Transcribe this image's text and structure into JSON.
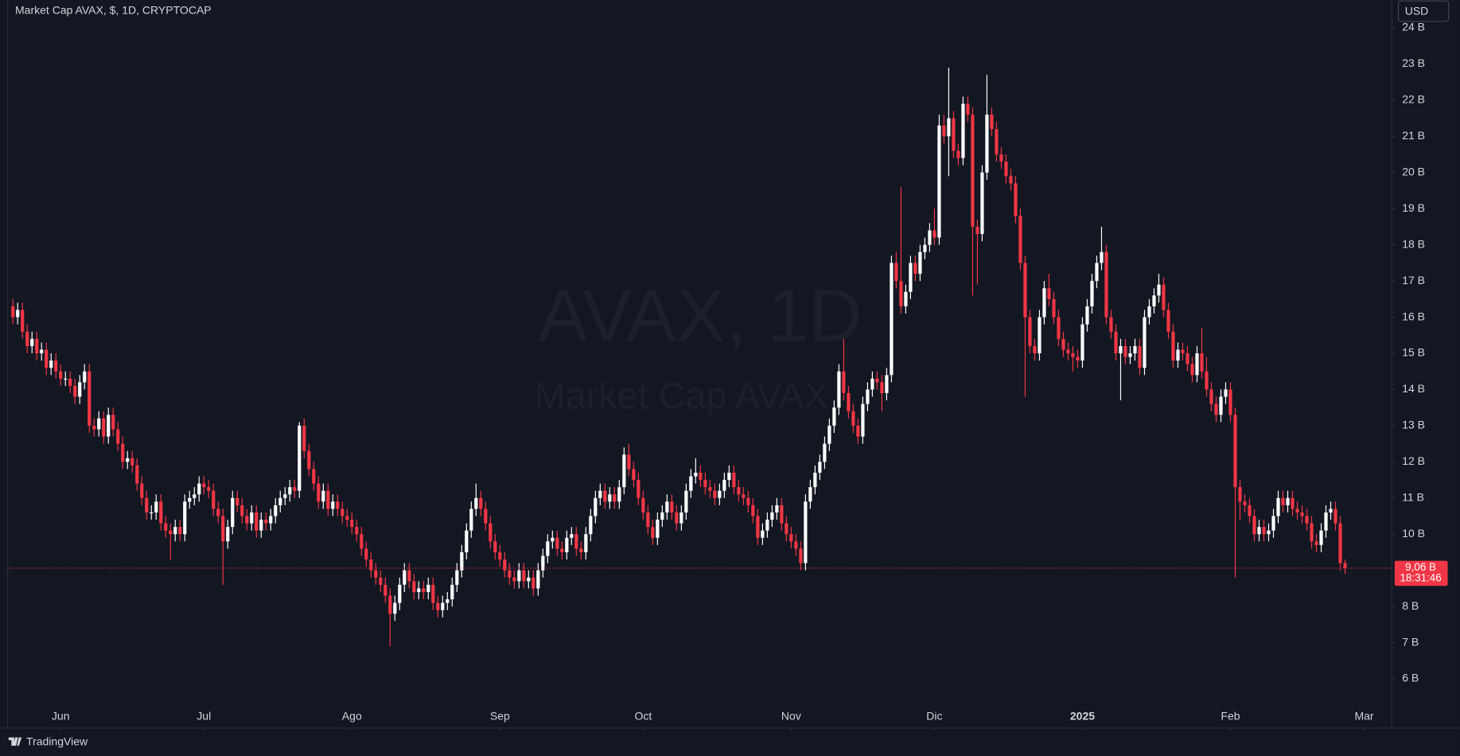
{
  "ui": {
    "currency": "USD",
    "watermark_main": "AVAX, 1D",
    "watermark_sub": "Market Cap AVAX",
    "countdown": "18:31:46",
    "brand": "TradingView"
  },
  "chart_data": {
    "type": "candlestick",
    "title": "Market Cap AVAX, $, 1D, CRYPTOCAP",
    "up_color": "#ffffff",
    "down_color": "#f23645",
    "grid": false,
    "last_label": "9,06 B",
    "xlim": [
      -1.1,
      288.8
    ],
    "xticks": [
      {
        "value": 10,
        "label": "Jun"
      },
      {
        "value": 40,
        "label": "Jul"
      },
      {
        "value": 71,
        "label": "Ago"
      },
      {
        "value": 102,
        "label": "Sep"
      },
      {
        "value": 132,
        "label": "Oct"
      },
      {
        "value": 163,
        "label": "Nov"
      },
      {
        "value": 193,
        "label": "Dic"
      },
      {
        "value": 224,
        "label": "2025"
      },
      {
        "value": 255,
        "label": "Feb"
      },
      {
        "value": 283,
        "label": "Mar"
      }
    ],
    "ylim": [
      4.69,
      24.77
    ],
    "yticks": [
      {
        "value": 6,
        "label": "6 B"
      },
      {
        "value": 7,
        "label": "7 B"
      },
      {
        "value": 8,
        "label": "8 B"
      },
      {
        "value": 10,
        "label": "10 B"
      },
      {
        "value": 11,
        "label": "11 B"
      },
      {
        "value": 12,
        "label": "12 B"
      },
      {
        "value": 13,
        "label": "13 B"
      },
      {
        "value": 14,
        "label": "14 B"
      },
      {
        "value": 15,
        "label": "15 B"
      },
      {
        "value": 16,
        "label": "16 B"
      },
      {
        "value": 17,
        "label": "17 B"
      },
      {
        "value": 18,
        "label": "18 B"
      },
      {
        "value": 19,
        "label": "19 B"
      },
      {
        "value": 20,
        "label": "20 B"
      },
      {
        "value": 21,
        "label": "21 B"
      },
      {
        "value": 22,
        "label": "22 B"
      },
      {
        "value": 23,
        "label": "23 B"
      },
      {
        "value": 24,
        "label": "24 B"
      }
    ],
    "open": [
      16.3,
      16.0,
      16.2,
      15.6,
      15.2,
      15.4,
      15.0,
      15.1,
      14.6,
      14.8,
      14.5,
      14.3,
      14.3,
      14.1,
      13.8,
      14.2,
      14.5,
      13.0,
      12.9,
      13.2,
      12.7,
      13.3,
      12.9,
      12.5,
      12.0,
      12.1,
      11.9,
      11.4,
      11.0,
      10.6,
      10.6,
      10.9,
      10.3,
      10.1,
      10.0,
      10.2,
      10.0,
      10.9,
      11.0,
      11.1,
      11.4,
      11.3,
      11.2,
      10.7,
      10.5,
      9.8,
      10.2,
      11.0,
      10.8,
      10.5,
      10.3,
      10.6,
      10.1,
      10.4,
      10.3,
      10.5,
      10.8,
      11.0,
      11.1,
      11.3,
      11.2,
      13.0,
      12.3,
      11.8,
      11.4,
      10.9,
      11.2,
      10.7,
      10.9,
      10.7,
      10.5,
      10.4,
      10.2,
      10.0,
      9.6,
      9.3,
      9.0,
      8.8,
      8.6,
      8.3,
      7.8,
      8.1,
      8.6,
      9.0,
      8.7,
      8.4,
      8.5,
      8.4,
      8.6,
      8.1,
      7.9,
      8.1,
      8.2,
      8.6,
      9.0,
      9.5,
      10.1,
      10.7,
      11.0,
      10.7,
      10.3,
      9.8,
      9.5,
      9.3,
      9.0,
      8.8,
      8.7,
      9.0,
      8.7,
      8.8,
      8.5,
      9.0,
      9.4,
      9.8,
      9.9,
      9.6,
      9.5,
      9.9,
      10.0,
      9.6,
      9.5,
      10.0,
      10.5,
      11.0,
      11.2,
      10.9,
      11.1,
      10.9,
      11.3,
      12.2,
      11.8,
      11.5,
      11.0,
      10.6,
      10.2,
      9.9,
      10.4,
      10.6,
      10.9,
      10.6,
      10.3,
      10.6,
      11.2,
      11.6,
      11.7,
      11.5,
      11.3,
      11.2,
      11.0,
      11.2,
      11.5,
      11.7,
      11.3,
      11.1,
      11.0,
      10.8,
      10.5,
      9.9,
      10.1,
      10.4,
      10.6,
      10.8,
      10.3,
      10.0,
      9.8,
      9.6,
      9.2,
      10.9,
      11.3,
      11.7,
      12.0,
      12.5,
      13.0,
      13.5,
      14.5,
      13.9,
      13.4,
      13.0,
      12.7,
      13.6,
      14.0,
      14.3,
      14.2,
      13.9,
      14.4,
      17.5,
      17.0,
      16.3,
      16.7,
      17.5,
      17.2,
      17.8,
      18.0,
      18.4,
      18.2,
      21.3,
      21.0,
      21.5,
      20.6,
      20.4,
      21.9,
      21.6,
      18.5,
      18.3,
      20.0,
      21.6,
      21.2,
      20.5,
      20.3,
      19.9,
      19.7,
      18.8,
      17.5,
      16.0,
      15.2,
      15.0,
      16.0,
      16.8,
      16.5,
      16.0,
      15.4,
      15.1,
      15.0,
      14.9,
      14.8,
      15.8,
      16.3,
      17.0,
      17.5,
      17.8,
      16.0,
      15.6,
      15.0,
      15.2,
      14.9,
      15.0,
      15.2,
      14.6,
      16.0,
      16.3,
      16.6,
      16.9,
      16.2,
      15.6,
      14.8,
      15.1,
      15.0,
      14.7,
      14.4,
      15.0,
      14.5,
      14.0,
      13.6,
      13.3,
      13.8,
      14.0,
      13.3,
      11.3,
      10.9,
      10.8,
      10.5,
      10.0,
      10.2,
      10.0,
      10.1,
      10.5,
      11.0,
      10.8,
      11.0,
      10.7,
      10.6,
      10.5,
      10.3,
      9.8,
      9.7,
      10.1,
      10.6,
      10.7,
      10.3,
      9.2
    ],
    "high": [
      16.5,
      16.4,
      16.4,
      15.8,
      15.6,
      15.6,
      15.3,
      15.3,
      15.0,
      15.0,
      14.7,
      14.5,
      14.5,
      14.3,
      14.4,
      14.7,
      14.7,
      13.2,
      13.4,
      13.4,
      13.5,
      13.5,
      13.1,
      12.7,
      12.3,
      12.3,
      12.1,
      11.6,
      11.2,
      10.8,
      11.1,
      11.1,
      10.5,
      10.3,
      10.4,
      10.4,
      11.1,
      11.2,
      11.3,
      11.6,
      11.6,
      11.5,
      11.4,
      10.9,
      10.7,
      10.4,
      11.2,
      11.2,
      11.0,
      10.7,
      10.8,
      10.8,
      10.6,
      10.6,
      10.7,
      11.0,
      11.2,
      11.3,
      11.5,
      11.5,
      13.1,
      13.2,
      12.5,
      12.0,
      11.6,
      11.4,
      11.4,
      11.1,
      11.1,
      10.9,
      10.7,
      10.6,
      10.4,
      10.2,
      9.8,
      9.5,
      9.2,
      9.0,
      8.8,
      8.5,
      8.3,
      8.8,
      9.2,
      9.2,
      8.9,
      8.7,
      8.7,
      8.8,
      8.8,
      8.3,
      8.3,
      8.4,
      8.8,
      9.2,
      9.7,
      10.3,
      10.9,
      11.4,
      11.2,
      10.9,
      10.5,
      10.0,
      9.7,
      9.5,
      9.2,
      9.0,
      9.2,
      9.2,
      9.0,
      9.0,
      9.2,
      9.6,
      10.0,
      10.1,
      10.1,
      9.8,
      10.1,
      10.2,
      10.2,
      9.8,
      10.2,
      10.7,
      11.2,
      11.4,
      11.4,
      11.3,
      11.3,
      11.5,
      12.4,
      12.5,
      12.0,
      11.7,
      11.2,
      10.8,
      10.4,
      10.6,
      10.8,
      11.1,
      11.1,
      10.8,
      10.8,
      11.4,
      11.8,
      12.1,
      11.9,
      11.7,
      11.5,
      11.4,
      11.4,
      11.7,
      11.9,
      11.9,
      11.5,
      11.3,
      11.2,
      11.0,
      10.7,
      10.3,
      10.6,
      10.8,
      11.0,
      11.0,
      10.5,
      10.2,
      10.0,
      9.8,
      11.1,
      11.5,
      11.9,
      12.2,
      12.7,
      13.2,
      13.7,
      14.7,
      15.4,
      14.1,
      13.6,
      13.2,
      13.8,
      14.2,
      14.5,
      14.5,
      14.4,
      14.6,
      17.7,
      17.8,
      19.6,
      16.9,
      17.7,
      17.7,
      18.0,
      18.2,
      18.6,
      19.0,
      21.6,
      21.6,
      22.9,
      21.7,
      20.8,
      22.1,
      22.1,
      21.8,
      18.7,
      20.2,
      22.7,
      21.8,
      21.4,
      20.7,
      20.5,
      20.1,
      19.9,
      19.0,
      17.7,
      16.2,
      15.4,
      16.2,
      17.0,
      17.2,
      16.7,
      16.2,
      15.6,
      15.3,
      15.2,
      15.1,
      16.0,
      16.5,
      17.2,
      17.7,
      18.5,
      18.0,
      16.2,
      15.8,
      15.4,
      15.4,
      15.2,
      15.4,
      15.4,
      16.2,
      16.5,
      16.8,
      17.2,
      17.1,
      16.4,
      15.8,
      15.3,
      15.3,
      15.2,
      14.9,
      15.2,
      15.7,
      14.9,
      14.2,
      13.8,
      14.0,
      14.2,
      14.2,
      13.5,
      11.5,
      11.1,
      11.0,
      10.7,
      10.4,
      10.4,
      10.3,
      10.7,
      11.2,
      11.2,
      11.2,
      11.2,
      10.9,
      10.8,
      10.7,
      10.5,
      10.0,
      10.3,
      10.8,
      10.9,
      10.9,
      10.5,
      9.3
    ],
    "low": [
      15.8,
      15.8,
      15.4,
      15.0,
      15.0,
      14.8,
      14.8,
      14.4,
      14.4,
      14.3,
      14.1,
      14.1,
      13.9,
      13.6,
      13.6,
      14.0,
      12.8,
      12.7,
      12.7,
      12.5,
      12.5,
      12.7,
      12.3,
      11.8,
      11.8,
      11.7,
      11.2,
      10.8,
      10.4,
      10.4,
      10.4,
      10.1,
      9.9,
      9.3,
      9.8,
      9.8,
      9.8,
      10.7,
      10.8,
      10.9,
      11.1,
      11.0,
      10.5,
      10.3,
      8.6,
      9.6,
      10.0,
      10.6,
      10.3,
      10.1,
      10.1,
      9.9,
      9.9,
      10.1,
      10.1,
      10.3,
      10.6,
      10.8,
      10.9,
      11.0,
      11.0,
      12.1,
      11.6,
      11.2,
      10.7,
      10.7,
      10.5,
      10.5,
      10.5,
      10.3,
      10.2,
      10.0,
      9.8,
      9.4,
      9.1,
      8.8,
      8.6,
      8.4,
      8.1,
      6.9,
      7.6,
      7.9,
      8.4,
      8.5,
      8.2,
      8.2,
      8.2,
      8.2,
      7.9,
      7.7,
      7.7,
      7.9,
      8.0,
      8.4,
      8.8,
      9.3,
      9.9,
      10.5,
      10.5,
      10.1,
      9.6,
      9.3,
      9.1,
      8.8,
      8.6,
      8.5,
      8.5,
      8.5,
      8.5,
      8.3,
      8.3,
      8.8,
      9.2,
      9.6,
      9.4,
      9.3,
      9.3,
      9.7,
      9.4,
      9.3,
      9.3,
      9.8,
      10.3,
      10.8,
      10.7,
      10.7,
      10.7,
      10.7,
      11.1,
      11.6,
      11.3,
      10.8,
      10.4,
      10.0,
      9.7,
      9.7,
      10.2,
      10.4,
      10.4,
      10.1,
      10.1,
      10.4,
      11.0,
      11.4,
      11.3,
      11.1,
      11.0,
      10.8,
      10.8,
      11.0,
      11.3,
      11.1,
      10.9,
      10.8,
      10.6,
      10.3,
      9.7,
      9.7,
      9.9,
      10.2,
      10.4,
      10.1,
      9.8,
      9.6,
      9.4,
      9.0,
      9.0,
      10.7,
      11.1,
      11.5,
      11.8,
      12.3,
      12.8,
      13.3,
      13.7,
      13.2,
      12.8,
      12.5,
      12.5,
      13.4,
      13.8,
      14.0,
      13.4,
      13.7,
      14.2,
      16.8,
      16.1,
      16.1,
      16.5,
      17.0,
      17.0,
      17.6,
      17.8,
      18.0,
      18.0,
      20.8,
      19.9,
      20.4,
      20.2,
      20.2,
      21.4,
      16.6,
      16.9,
      18.1,
      19.8,
      21.0,
      20.3,
      20.1,
      19.7,
      19.5,
      18.6,
      17.3,
      13.8,
      15.0,
      14.8,
      14.8,
      15.8,
      16.3,
      15.8,
      15.2,
      14.9,
      14.8,
      14.5,
      14.6,
      14.6,
      15.6,
      16.1,
      16.8,
      17.3,
      15.8,
      15.4,
      14.8,
      13.7,
      14.7,
      14.7,
      14.8,
      14.4,
      14.4,
      15.8,
      16.1,
      16.4,
      16.0,
      15.4,
      14.6,
      14.6,
      14.8,
      14.5,
      14.2,
      14.2,
      14.3,
      13.8,
      13.4,
      13.1,
      13.1,
      13.6,
      13.1,
      8.8,
      10.4,
      10.6,
      10.3,
      9.8,
      9.8,
      9.8,
      9.8,
      9.9,
      10.3,
      10.6,
      10.6,
      10.5,
      10.4,
      10.3,
      10.1,
      9.6,
      9.5,
      9.5,
      9.9,
      10.4,
      10.1,
      9.0,
      8.9
    ],
    "close": [
      16.0,
      16.2,
      15.6,
      15.2,
      15.4,
      15.0,
      15.1,
      14.6,
      14.8,
      14.5,
      14.3,
      14.3,
      14.1,
      13.8,
      14.2,
      14.5,
      13.0,
      12.9,
      13.2,
      12.7,
      13.3,
      12.9,
      12.5,
      12.0,
      12.1,
      11.9,
      11.4,
      11.0,
      10.6,
      10.6,
      10.9,
      10.3,
      10.1,
      10.0,
      10.2,
      10.0,
      10.9,
      11.0,
      11.1,
      11.4,
      11.3,
      11.2,
      10.7,
      10.5,
      9.8,
      10.2,
      11.0,
      10.8,
      10.5,
      10.3,
      10.6,
      10.1,
      10.4,
      10.3,
      10.5,
      10.8,
      11.0,
      11.1,
      11.3,
      11.2,
      13.0,
      12.3,
      11.8,
      11.4,
      10.9,
      11.2,
      10.7,
      10.9,
      10.7,
      10.5,
      10.4,
      10.2,
      10.0,
      9.6,
      9.3,
      9.0,
      8.8,
      8.6,
      8.3,
      7.8,
      8.1,
      8.6,
      9.0,
      8.7,
      8.4,
      8.5,
      8.4,
      8.6,
      8.1,
      7.9,
      8.1,
      8.2,
      8.6,
      9.0,
      9.5,
      10.1,
      10.7,
      11.0,
      10.7,
      10.3,
      9.8,
      9.5,
      9.3,
      9.0,
      8.8,
      8.7,
      9.0,
      8.7,
      8.8,
      8.5,
      9.0,
      9.4,
      9.8,
      9.9,
      9.6,
      9.5,
      9.9,
      10.0,
      9.6,
      9.5,
      10.0,
      10.5,
      11.0,
      11.2,
      10.9,
      11.1,
      10.9,
      11.3,
      12.2,
      11.8,
      11.5,
      11.0,
      10.6,
      10.2,
      9.9,
      10.4,
      10.6,
      10.9,
      10.6,
      10.3,
      10.6,
      11.2,
      11.6,
      11.7,
      11.5,
      11.3,
      11.2,
      11.0,
      11.2,
      11.5,
      11.7,
      11.3,
      11.1,
      11.0,
      10.8,
      10.5,
      9.9,
      10.1,
      10.4,
      10.6,
      10.8,
      10.3,
      10.0,
      9.8,
      9.6,
      9.2,
      10.9,
      11.3,
      11.7,
      12.0,
      12.5,
      13.0,
      13.5,
      14.5,
      13.9,
      13.4,
      13.0,
      12.7,
      13.6,
      14.0,
      14.3,
      14.2,
      13.9,
      14.4,
      17.5,
      17.0,
      16.3,
      16.7,
      17.5,
      17.2,
      17.8,
      18.0,
      18.4,
      18.2,
      21.3,
      21.0,
      21.5,
      20.6,
      20.4,
      21.9,
      21.6,
      18.5,
      18.3,
      20.0,
      21.6,
      21.2,
      20.5,
      20.3,
      19.9,
      19.7,
      18.8,
      17.5,
      16.0,
      15.2,
      15.0,
      16.0,
      16.8,
      16.5,
      16.0,
      15.4,
      15.1,
      15.0,
      14.9,
      14.8,
      15.8,
      16.3,
      17.0,
      17.5,
      17.8,
      16.0,
      15.6,
      15.0,
      15.2,
      14.9,
      15.0,
      15.2,
      14.6,
      16.0,
      16.3,
      16.6,
      16.9,
      16.2,
      15.6,
      14.8,
      15.1,
      15.0,
      14.7,
      14.4,
      15.0,
      14.5,
      14.0,
      13.6,
      13.3,
      13.8,
      14.0,
      13.3,
      11.3,
      10.9,
      10.8,
      10.5,
      10.0,
      10.2,
      10.0,
      10.1,
      10.5,
      11.0,
      10.8,
      11.0,
      10.7,
      10.6,
      10.5,
      10.3,
      9.8,
      9.7,
      10.1,
      10.6,
      10.7,
      10.3,
      9.2,
      9.06
    ]
  }
}
